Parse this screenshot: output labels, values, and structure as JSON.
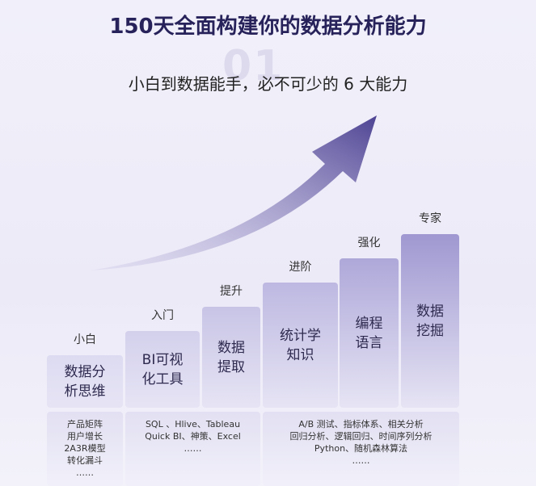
{
  "title": "150天全面构建你的数据分析能力",
  "watermark": "01",
  "subtitle": "小白到数据能手，必不可少的 6 大能力",
  "stages": [
    {
      "level": "小白",
      "lines": [
        "数据分",
        "析思维"
      ]
    },
    {
      "level": "入门",
      "lines": [
        "BI可视",
        "化工具"
      ]
    },
    {
      "level": "提升",
      "lines": [
        "数据",
        "提取"
      ]
    },
    {
      "level": "进阶",
      "lines": [
        "统计学",
        "知识"
      ]
    },
    {
      "level": "强化",
      "lines": [
        "编程",
        "语言"
      ]
    },
    {
      "level": "专家",
      "lines": [
        "数据",
        "挖掘"
      ]
    }
  ],
  "details": [
    {
      "lines": [
        "产品矩阵",
        "用户增长",
        "2A3R模型",
        "转化漏斗",
        "……"
      ]
    },
    {
      "lines": [
        "SQL 、Hlive、Tableau",
        "Quick BI、神策、Excel",
        "……"
      ]
    },
    {
      "lines": [
        "A/B 测试、指标体系、相关分析",
        "回归分析、逻辑回归、时间序列分析",
        "Python、随机森林算法",
        "……"
      ]
    }
  ]
}
